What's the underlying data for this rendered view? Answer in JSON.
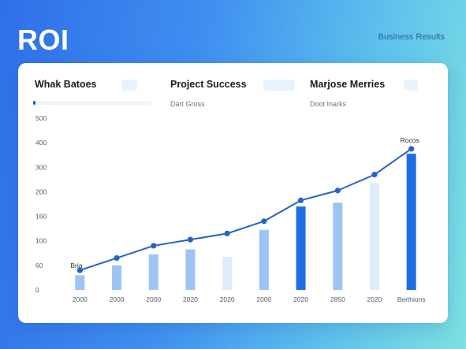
{
  "header": {
    "logo": "ROI",
    "context_label": "Business Results"
  },
  "metrics": [
    {
      "title": "Whak Batoes",
      "subtitle": "",
      "progress": 0.02
    },
    {
      "title": "Project Success",
      "subtitle": "Dart Gross"
    },
    {
      "title": "Marjose Merries",
      "subtitle": "Doot Inarks"
    }
  ],
  "colors": {
    "bar_light": "#9cc4f5",
    "bar_lighter": "#ddebfb",
    "bar_dark": "#1f6ee6",
    "line": "#2563c9"
  },
  "chart_data": {
    "type": "bar",
    "categories": [
      "2000",
      "2000",
      "2000",
      "2020",
      "2020",
      "2000",
      "2020",
      "2850",
      "2020",
      "Berthions"
    ],
    "y_tick_labels": [
      "0",
      "60",
      "100",
      "160",
      "200",
      "300",
      "400",
      "500"
    ],
    "ylim": [
      0,
      7
    ],
    "bars": [
      0.6,
      1.0,
      1.45,
      1.65,
      1.35,
      2.45,
      3.4,
      3.55,
      4.35,
      5.55
    ],
    "bar_styles": [
      "light",
      "light",
      "light",
      "light",
      "lighter",
      "light",
      "dark",
      "light",
      "lighter",
      "dark"
    ],
    "line": [
      0.8,
      1.3,
      1.8,
      2.05,
      2.3,
      2.8,
      3.65,
      4.05,
      4.7,
      5.75
    ],
    "annotations": [
      {
        "text": "Bria",
        "point_index": 0
      },
      {
        "text": "Rocos",
        "point_index": 9
      }
    ],
    "legend": false,
    "grid": false
  }
}
